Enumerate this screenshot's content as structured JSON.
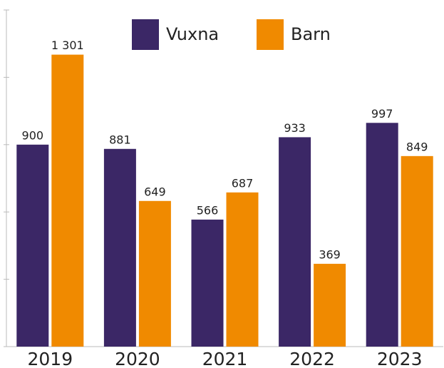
{
  "chart_data": {
    "type": "bar",
    "categories": [
      "2019",
      "2020",
      "2021",
      "2022",
      "2023"
    ],
    "series": [
      {
        "name": "Vuxna",
        "color": "#3b2766",
        "values": [
          900,
          881,
          566,
          933,
          997
        ]
      },
      {
        "name": "Barn",
        "color": "#f08a00",
        "values": [
          1301,
          649,
          687,
          369,
          849
        ],
        "value_labels": [
          "1 301",
          "649",
          "687",
          "369",
          "849"
        ]
      }
    ],
    "ylim": [
      0,
      1500
    ],
    "yticks": [
      0,
      300,
      600,
      900,
      1200,
      1500
    ],
    "legend": "top"
  }
}
